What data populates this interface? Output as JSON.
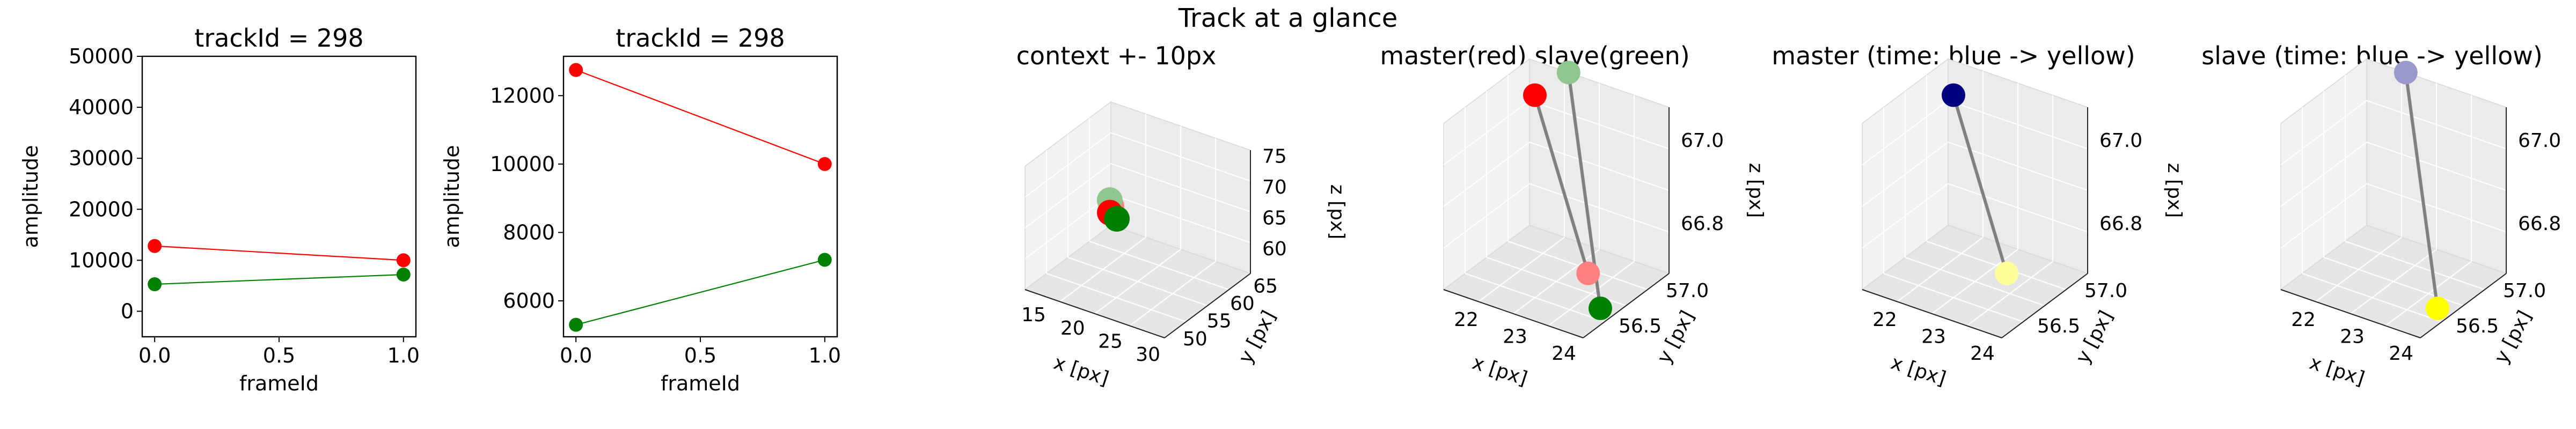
{
  "figure": {
    "suptitle": "Track at a glance"
  },
  "chart_data": [
    {
      "type": "line",
      "title": "trackId = 298",
      "xlabel": "frameId",
      "ylabel": "amplitude",
      "xlim": [
        -0.05,
        1.05
      ],
      "ylim": [
        -5000,
        50000
      ],
      "xticks": [
        "0.0",
        "0.5",
        "1.0"
      ],
      "xtick_values": [
        0,
        0.5,
        1
      ],
      "yticks": [
        "0",
        "10000",
        "20000",
        "30000",
        "40000",
        "50000"
      ],
      "ytick_values": [
        0,
        10000,
        20000,
        30000,
        40000,
        50000
      ],
      "x": [
        0,
        1
      ],
      "series": [
        {
          "color": "#ff0000",
          "values": [
            12800,
            10000
          ]
        },
        {
          "color": "#008000",
          "values": [
            5300,
            7200
          ]
        }
      ]
    },
    {
      "type": "line",
      "title": "trackId = 298",
      "xlabel": "frameId",
      "ylabel": "amplitude",
      "xlim": [
        -0.05,
        1.05
      ],
      "ylim": [
        4950,
        13150
      ],
      "xticks": [
        "0.0",
        "0.5",
        "1.0"
      ],
      "xtick_values": [
        0,
        0.5,
        1
      ],
      "yticks": [
        "6000",
        "8000",
        "10000",
        "12000"
      ],
      "ytick_values": [
        6000,
        8000,
        10000,
        12000
      ],
      "x": [
        0,
        1
      ],
      "series": [
        {
          "color": "#ff0000",
          "values": [
            12750,
            10000
          ]
        },
        {
          "color": "#008000",
          "values": [
            5300,
            7200
          ]
        }
      ]
    },
    {
      "type": "scatter3d",
      "title": "context +- 10px",
      "xlabel": "x [px]",
      "ylabel": "y [px]",
      "zlabel": "z [px]",
      "xticks": [
        "15",
        "20",
        "25",
        "30"
      ],
      "yticks": [
        "50",
        "55",
        "60",
        "65"
      ],
      "zticks": [
        "60",
        "65",
        "70",
        "75"
      ],
      "points": [
        {
          "x": 23,
          "y": 56.6,
          "z": 66.9,
          "color": "#ff8080"
        },
        {
          "x": 22,
          "y": 57.1,
          "z": 67.0,
          "color": "#8fc58f"
        },
        {
          "x": 23.5,
          "y": 56.9,
          "z": 66.8,
          "color": "#ff0000"
        },
        {
          "x": 24,
          "y": 56.4,
          "z": 66.7,
          "color": "#008000"
        }
      ]
    },
    {
      "type": "scatter3d",
      "title": "master(red) slave(green)",
      "xlabel": "x [px]",
      "ylabel": "y [px]",
      "zlabel": "z [px]",
      "xticks": [
        "22",
        "23",
        "24"
      ],
      "yticks": [
        "56.5",
        "57.0"
      ],
      "zticks": [
        "66.8",
        "67.0"
      ],
      "points": [
        {
          "x": 22.2,
          "y": 57.0,
          "z": 67.05,
          "color": "#ff0000"
        },
        {
          "x": 24.0,
          "y": 56.6,
          "z": 66.75,
          "color": "#ff8080"
        },
        {
          "x": 22.6,
          "y": 57.1,
          "z": 67.15,
          "color": "#8fc58f"
        },
        {
          "x": 24.4,
          "y": 56.4,
          "z": 66.7,
          "color": "#008000"
        }
      ]
    },
    {
      "type": "scatter3d",
      "title": "master (time: blue -> yellow)",
      "xlabel": "x [px]",
      "ylabel": "y [px]",
      "zlabel": "z [px]",
      "xticks": [
        "22",
        "23",
        "24"
      ],
      "yticks": [
        "56.5",
        "57.0"
      ],
      "zticks": [
        "66.8",
        "67.0"
      ],
      "points": [
        {
          "x": 22.2,
          "y": 57.0,
          "z": 67.05,
          "color": "#000080"
        },
        {
          "x": 24.0,
          "y": 56.6,
          "z": 66.75,
          "color": "#ffff99"
        }
      ]
    },
    {
      "type": "scatter3d",
      "title": "slave (time: blue -> yellow)",
      "xlabel": "x [px]",
      "ylabel": "y [px]",
      "zlabel": "z [px]",
      "xticks": [
        "22",
        "23",
        "24"
      ],
      "yticks": [
        "56.5",
        "57.0"
      ],
      "zticks": [
        "66.8",
        "67.0"
      ],
      "points": [
        {
          "x": 22.6,
          "y": 57.1,
          "z": 67.15,
          "color": "#9999cc"
        },
        {
          "x": 24.4,
          "y": 56.4,
          "z": 66.7,
          "color": "#ffff00"
        }
      ]
    }
  ]
}
